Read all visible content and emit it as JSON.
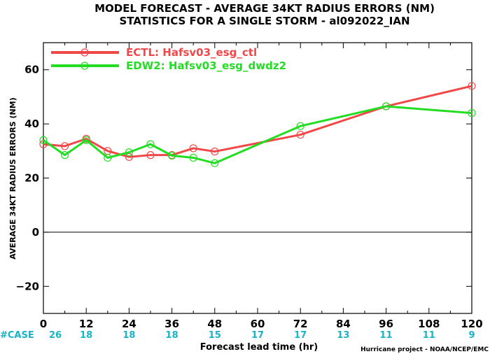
{
  "chart_data": {
    "type": "line",
    "title_lines": [
      "MODEL FORECAST - AVERAGE 34KT RADIUS ERRORS (NM)",
      "STATISTICS FOR A SINGLE STORM - al092022_IAN"
    ],
    "xlabel": "Forecast lead time (hr)",
    "ylabel": "AVERAGE 34KT RADIUS ERRORS (NM)",
    "xlim": [
      0,
      120
    ],
    "ylim": [
      -30,
      70
    ],
    "x_ticks": [
      0,
      12,
      24,
      36,
      48,
      60,
      72,
      84,
      96,
      108,
      120
    ],
    "y_ticks": [
      -20,
      0,
      20,
      40,
      60
    ],
    "zero_line": true,
    "grid": false,
    "legend_position": "top-left",
    "series": [
      {
        "name": "ECTL: Hafsv03_esg_ctl",
        "color": "#f04848",
        "x": [
          0,
          6,
          12,
          18,
          24,
          30,
          36,
          42,
          48,
          72,
          96,
          120
        ],
        "y": [
          32.5,
          31.8,
          34.5,
          30.0,
          27.8,
          28.5,
          28.5,
          31.0,
          29.8,
          36.0,
          46.5,
          54.0
        ]
      },
      {
        "name": "EDW2: Hafsv03_esg_dwdz2",
        "color": "#22dd22",
        "x": [
          0,
          6,
          12,
          18,
          24,
          30,
          36,
          42,
          48,
          72,
          96,
          120
        ],
        "y": [
          34.0,
          28.5,
          34.0,
          27.5,
          29.5,
          32.5,
          28.3,
          27.5,
          25.5,
          39.2,
          46.5,
          44.0
        ]
      }
    ],
    "cases": {
      "label": "#CASE",
      "x": [
        0,
        12,
        24,
        36,
        48,
        60,
        72,
        84,
        96,
        108,
        120
      ],
      "values": [
        26,
        18,
        18,
        18,
        15,
        17,
        17,
        13,
        11,
        11,
        9
      ]
    },
    "credit": "Hurricane project - NOAA/NCEP/EMC"
  }
}
